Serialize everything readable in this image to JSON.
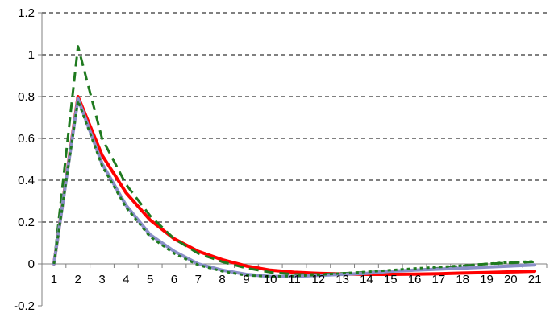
{
  "chart_data": {
    "type": "line",
    "title": "",
    "xlabel": "",
    "ylabel": "",
    "categories": [
      "1",
      "2",
      "3",
      "4",
      "5",
      "6",
      "7",
      "8",
      "9",
      "10",
      "11",
      "12",
      "13",
      "14",
      "15",
      "16",
      "17",
      "18",
      "19",
      "20",
      "21"
    ],
    "ylim": [
      -0.2,
      1.2
    ],
    "yticks": [
      -0.2,
      0,
      0.2,
      0.4,
      0.6,
      0.8,
      1,
      1.2
    ],
    "ytick_labels": [
      "-0.2",
      "0",
      "0.2",
      "0.4",
      "0.6",
      "0.8",
      "1",
      "1.2"
    ],
    "grid": "horizontal dashed",
    "legend": "none",
    "series": [
      {
        "color": "#ff0000",
        "style": "solid-thick",
        "values": [
          0,
          0.8,
          0.52,
          0.34,
          0.21,
          0.12,
          0.06,
          0.02,
          -0.01,
          -0.03,
          -0.04,
          -0.045,
          -0.048,
          -0.05,
          -0.05,
          -0.049,
          -0.047,
          -0.044,
          -0.041,
          -0.038,
          -0.035
        ]
      },
      {
        "color": "#1f7a1f",
        "style": "long-dash",
        "values": [
          0,
          1.04,
          0.6,
          0.38,
          0.23,
          0.12,
          0.05,
          0.01,
          -0.02,
          -0.04,
          -0.05,
          -0.05,
          -0.045,
          -0.04,
          -0.035,
          -0.03,
          -0.02,
          -0.01,
          0.0,
          0.005,
          0.01
        ]
      },
      {
        "color": "#8a8fc8",
        "style": "solid-thick",
        "values": [
          0,
          0.79,
          0.48,
          0.28,
          0.14,
          0.06,
          0.0,
          -0.03,
          -0.05,
          -0.06,
          -0.06,
          -0.055,
          -0.05,
          -0.045,
          -0.035,
          -0.03,
          -0.025,
          -0.02,
          -0.015,
          -0.01,
          -0.005
        ]
      },
      {
        "color": "#1f7a1f",
        "style": "dotted",
        "values": [
          0,
          0.78,
          0.47,
          0.27,
          0.13,
          0.05,
          -0.005,
          -0.035,
          -0.055,
          -0.06,
          -0.058,
          -0.052,
          -0.045,
          -0.038,
          -0.03,
          -0.022,
          -0.015,
          -0.008,
          0.0,
          0.008,
          0.012
        ]
      }
    ]
  }
}
